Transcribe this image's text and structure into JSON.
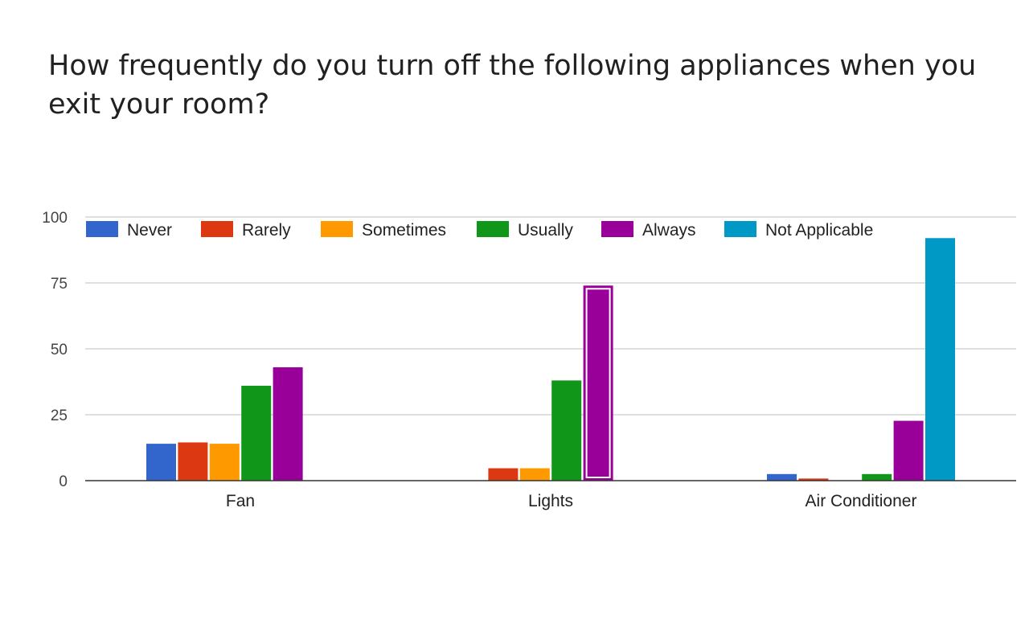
{
  "title": "How frequently do you turn off the following appliances when you exit your room?",
  "chart_data": {
    "type": "bar",
    "categories": [
      "Fan",
      "Lights",
      "Air Conditioner"
    ],
    "ylim": [
      0,
      100
    ],
    "yticks": [
      "0",
      "25",
      "50",
      "75",
      "100"
    ],
    "grid": true,
    "legend_position": "top",
    "highlighted": {
      "series": "Always",
      "category": "Lights"
    },
    "series": [
      {
        "name": "Never",
        "color": "#3366cc",
        "values": [
          14,
          0,
          2.5
        ]
      },
      {
        "name": "Rarely",
        "color": "#dc3912",
        "values": [
          14.5,
          4.7,
          0.8
        ]
      },
      {
        "name": "Sometimes",
        "color": "#ff9900",
        "values": [
          14,
          4.7,
          0
        ]
      },
      {
        "name": "Usually",
        "color": "#109618",
        "values": [
          36,
          38,
          2.5
        ]
      },
      {
        "name": "Always",
        "color": "#990099",
        "values": [
          43,
          74,
          22.7
        ]
      },
      {
        "name": "Not Applicable",
        "color": "#0099c6",
        "values": [
          0,
          0,
          92
        ]
      }
    ]
  }
}
